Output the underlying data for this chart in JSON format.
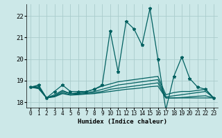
{
  "xlabel": "Humidex (Indice chaleur)",
  "background_color": "#cce8e8",
  "grid_color": "#aacccc",
  "line_color": "#006060",
  "xlim": [
    -0.5,
    23.5
  ],
  "ylim": [
    17.75,
    22.55
  ],
  "yticks": [
    18,
    19,
    20,
    21,
    22
  ],
  "xticks": [
    0,
    1,
    2,
    3,
    4,
    5,
    6,
    7,
    8,
    9,
    10,
    11,
    12,
    13,
    14,
    15,
    16,
    17,
    18,
    19,
    20,
    21,
    22,
    23
  ],
  "series": [
    {
      "y": [
        18.7,
        18.8,
        18.2,
        18.5,
        18.8,
        18.5,
        18.5,
        18.5,
        18.6,
        18.8,
        21.3,
        19.4,
        21.75,
        21.4,
        20.65,
        22.35,
        20.0,
        17.65,
        19.2,
        20.1,
        19.1,
        18.7,
        18.6,
        18.2
      ],
      "marker": true,
      "lw": 0.9
    },
    {
      "y": [
        18.7,
        18.75,
        18.2,
        18.35,
        18.55,
        18.4,
        18.45,
        18.5,
        18.6,
        18.75,
        18.85,
        18.95,
        19.0,
        19.05,
        19.1,
        19.15,
        19.2,
        18.35,
        18.45,
        18.5,
        18.5,
        18.55,
        18.6,
        18.2
      ],
      "marker": false,
      "lw": 0.9
    },
    {
      "y": [
        18.7,
        18.7,
        18.2,
        18.3,
        18.5,
        18.4,
        18.4,
        18.45,
        18.5,
        18.6,
        18.7,
        18.8,
        18.85,
        18.9,
        18.95,
        19.0,
        19.05,
        18.25,
        18.3,
        18.35,
        18.4,
        18.45,
        18.5,
        18.2
      ],
      "marker": false,
      "lw": 0.9
    },
    {
      "y": [
        18.7,
        18.65,
        18.2,
        18.28,
        18.44,
        18.35,
        18.38,
        18.4,
        18.45,
        18.5,
        18.6,
        18.65,
        18.7,
        18.75,
        18.8,
        18.85,
        18.9,
        18.2,
        18.2,
        18.22,
        18.25,
        18.28,
        18.3,
        18.2
      ],
      "marker": false,
      "lw": 0.9
    },
    {
      "y": [
        18.7,
        18.63,
        18.2,
        18.25,
        18.4,
        18.33,
        18.35,
        18.38,
        18.4,
        18.45,
        18.5,
        18.55,
        18.6,
        18.63,
        18.67,
        18.72,
        18.75,
        18.2,
        18.2,
        18.2,
        18.2,
        18.2,
        18.2,
        18.2
      ],
      "marker": false,
      "lw": 0.9
    }
  ]
}
